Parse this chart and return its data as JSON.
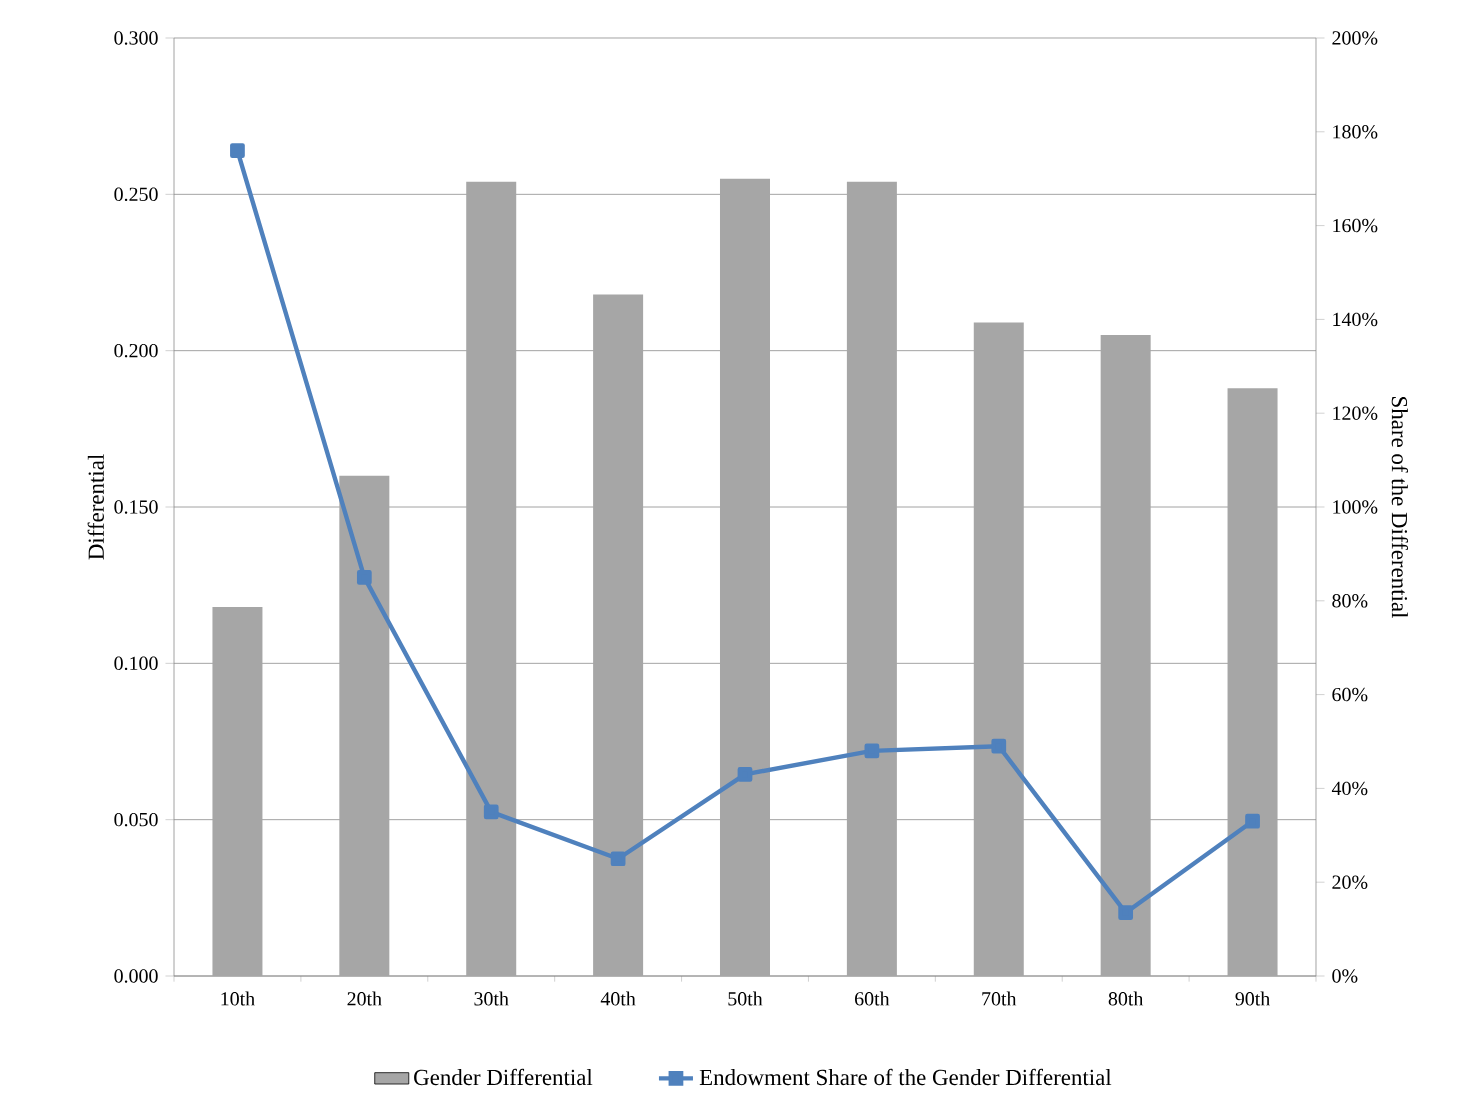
{
  "chart_data": {
    "type": "bar",
    "categories": [
      "10th",
      "20th",
      "30th",
      "40th",
      "50th",
      "60th",
      "70th",
      "80th",
      "90th"
    ],
    "series": [
      {
        "name": "Gender Differential",
        "color": "#a6a6a6",
        "values": [
          0.118,
          0.16,
          0.254,
          0.218,
          0.255,
          0.254,
          0.209,
          0.205,
          0.188
        ]
      },
      {
        "name": "Endowment Share of the Gender Differential",
        "type": "line",
        "axis": "y2",
        "color": "#4f81bd",
        "values": [
          176,
          85,
          35,
          25,
          43,
          48,
          49,
          13.5,
          33
        ]
      }
    ],
    "ylabel": "Differential",
    "y2label": "Share of the Differential",
    "ylim": [
      0,
      0.3
    ],
    "yticks": [
      {
        "value": 0,
        "label": "0.000"
      },
      {
        "value": 0.05,
        "label": "0.050"
      },
      {
        "value": 0.1,
        "label": "0.100"
      },
      {
        "value": 0.15,
        "label": "0.150"
      },
      {
        "value": 0.2,
        "label": "0.200"
      },
      {
        "value": 0.25,
        "label": "0.250"
      },
      {
        "value": 0.3,
        "label": "0.300"
      }
    ],
    "y2lim": [
      0,
      200
    ],
    "y2ticks": [
      {
        "value": 0,
        "label": "0%"
      },
      {
        "value": 20,
        "label": "20%"
      },
      {
        "value": 40,
        "label": "40%"
      },
      {
        "value": 60,
        "label": "60%"
      },
      {
        "value": 80,
        "label": "80%"
      },
      {
        "value": 100,
        "label": "100%"
      },
      {
        "value": 120,
        "label": "120%"
      },
      {
        "value": 140,
        "label": "140%"
      },
      {
        "value": 160,
        "label": "160%"
      },
      {
        "value": 180,
        "label": "180%"
      },
      {
        "value": 200,
        "label": "200%"
      }
    ],
    "grid": "y",
    "legend": "bottom",
    "marker": "square"
  }
}
